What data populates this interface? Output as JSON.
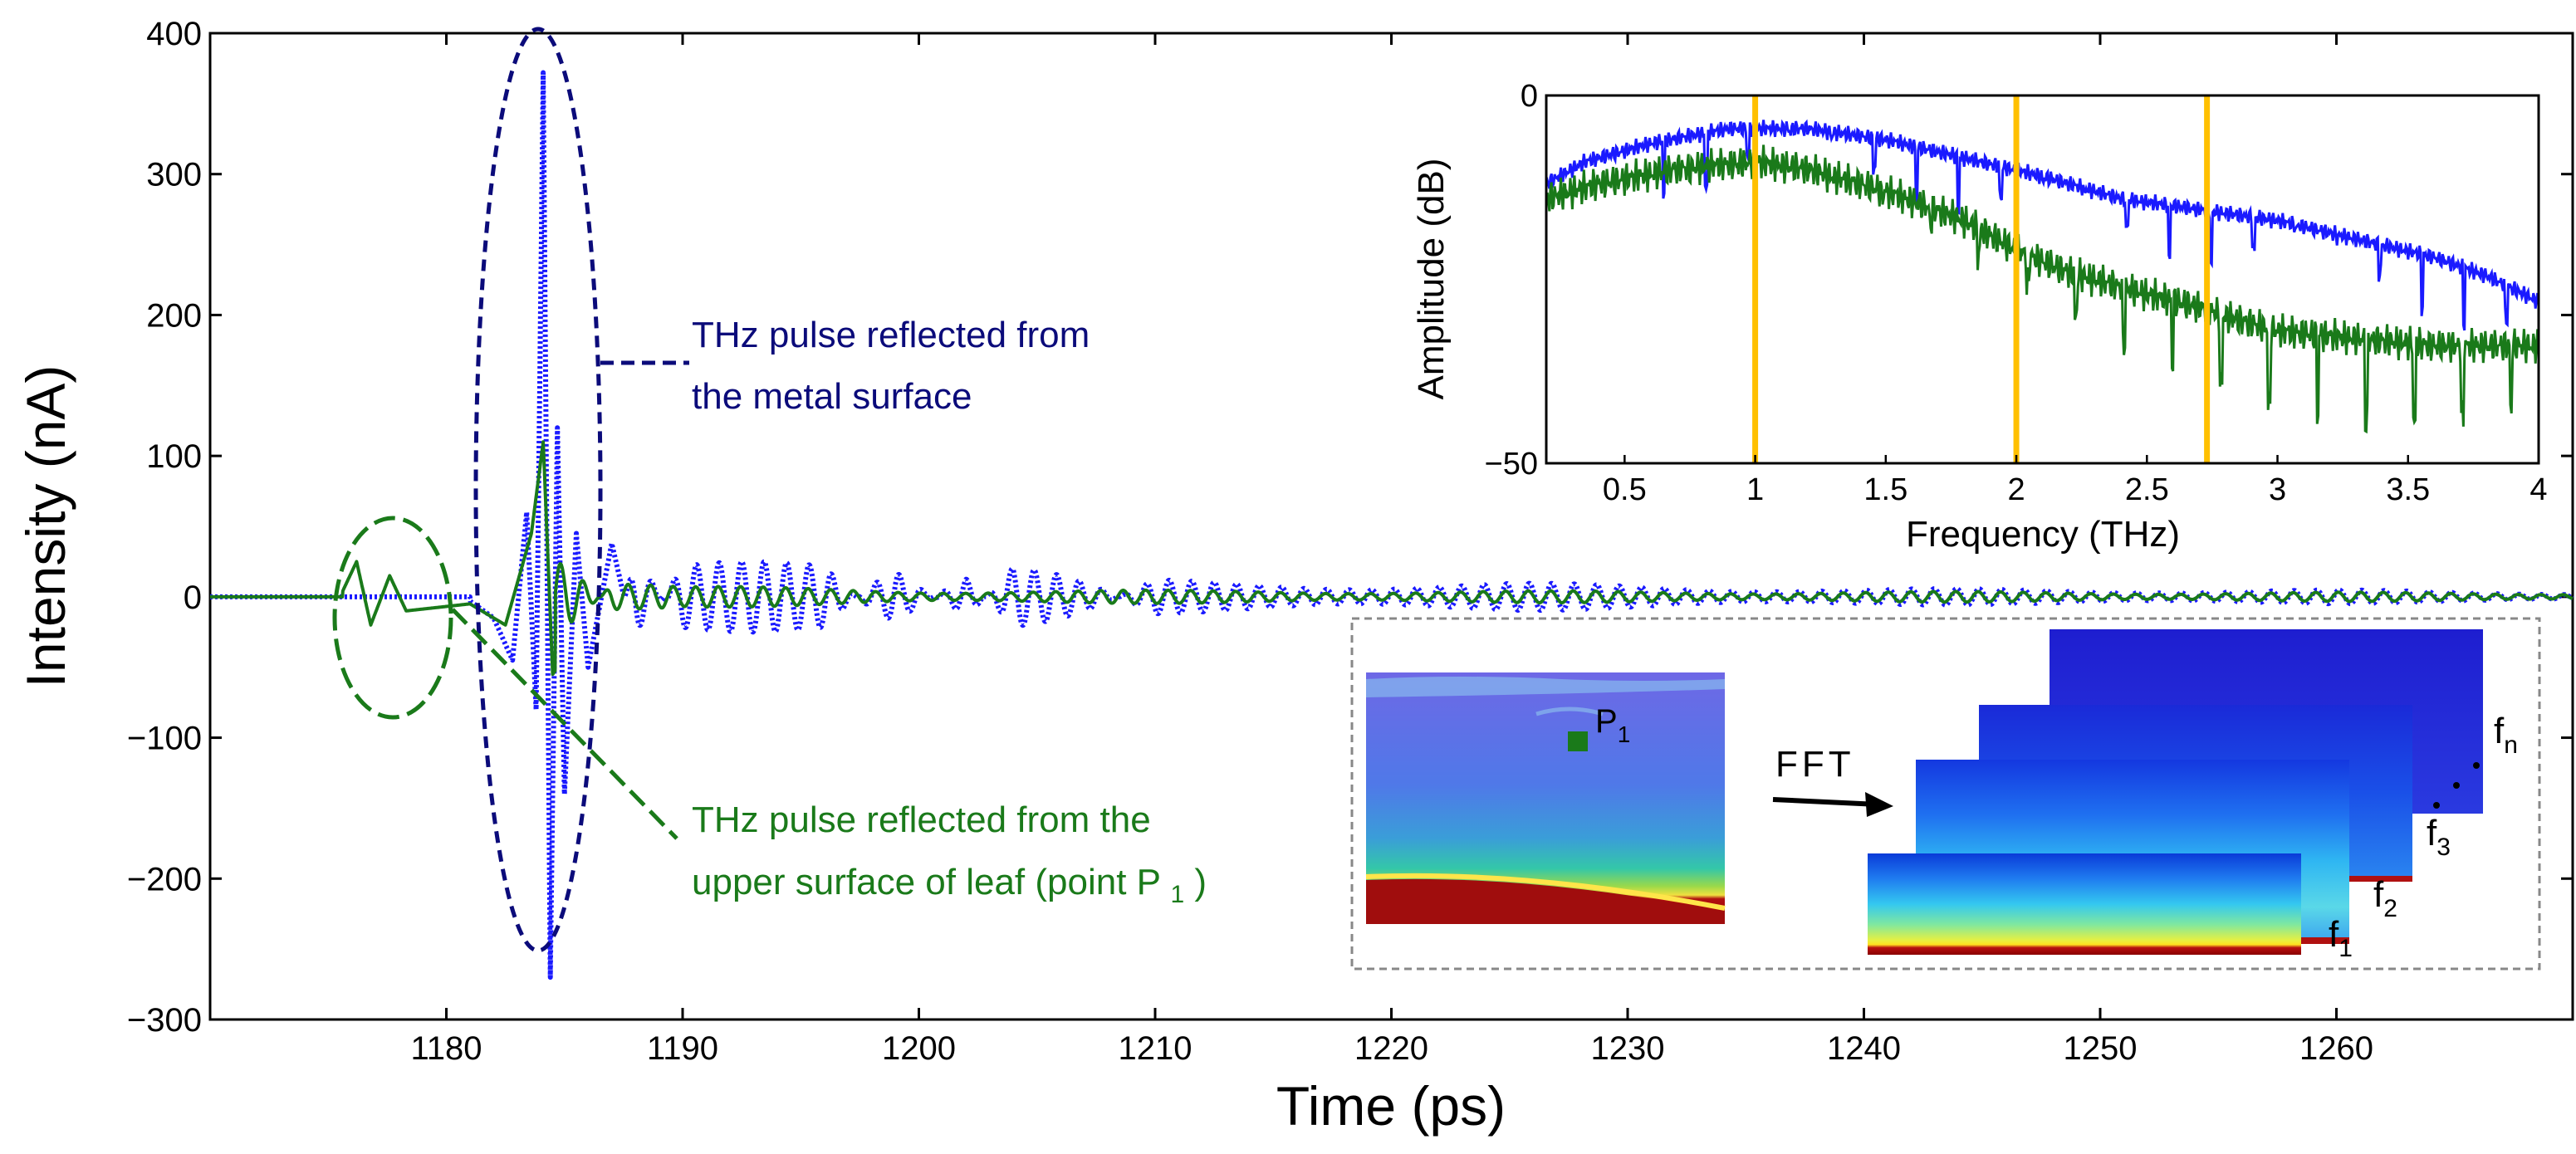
{
  "chart_data": [
    {
      "type": "line",
      "xlabel": "Time (ps)",
      "ylabel": "Intensity (nA)",
      "xlim": [
        1170,
        1270
      ],
      "ylim": [
        -300,
        400
      ],
      "xticks": [
        1180,
        1190,
        1200,
        1210,
        1220,
        1230,
        1240,
        1250,
        1260
      ],
      "yticks": [
        -300,
        -200,
        -100,
        0,
        100,
        200,
        300,
        400
      ],
      "ytick_labels": [
        "−300",
        "−200",
        "−100",
        "0",
        "100",
        "200",
        "300",
        "400"
      ],
      "grid": false,
      "series": [
        {
          "color": "#1a1aff",
          "line_style": "dotted",
          "points": [
            [
              1170,
              0
            ],
            [
              1175,
              0
            ],
            [
              1181,
              -3
            ],
            [
              1182,
              -15
            ],
            [
              1182.8,
              -45
            ],
            [
              1183.4,
              60
            ],
            [
              1183.8,
              -80
            ],
            [
              1184.1,
              372
            ],
            [
              1184.4,
              -270
            ],
            [
              1184.7,
              120
            ],
            [
              1185.0,
              -140
            ],
            [
              1185.5,
              45
            ],
            [
              1186,
              -50
            ],
            [
              1187,
              38
            ],
            [
              1188,
              -35
            ],
            [
              1190,
              25
            ],
            [
              1196,
              25
            ],
            [
              1199,
              -30
            ],
            [
              1202,
              25
            ],
            [
              1204,
              -35
            ],
            [
              1210,
              12
            ],
            [
              1218,
              10
            ],
            [
              1225,
              10
            ],
            [
              1240,
              6
            ],
            [
              1260,
              5
            ],
            [
              1270,
              3
            ]
          ]
        },
        {
          "color": "#1a7a1a",
          "line_style": "solid",
          "points": [
            [
              1170,
              0
            ],
            [
              1175.5,
              0
            ],
            [
              1176.2,
              25
            ],
            [
              1176.8,
              -20
            ],
            [
              1177.6,
              15
            ],
            [
              1178.3,
              -10
            ],
            [
              1181,
              -5
            ],
            [
              1182.5,
              -20
            ],
            [
              1183.6,
              45
            ],
            [
              1184.1,
              110
            ],
            [
              1184.5,
              -55
            ],
            [
              1185.5,
              -30
            ],
            [
              1187,
              15
            ],
            [
              1190,
              8
            ],
            [
              1200,
              5
            ],
            [
              1270,
              3
            ]
          ]
        }
      ],
      "annotations": [
        {
          "id": "metal",
          "color": "#0b0b7a",
          "lines": [
            "THz pulse reflected from",
            "the metal surface"
          ]
        },
        {
          "id": "leaf",
          "color": "#1a7a1a",
          "lines": [
            "THz pulse reflected from the",
            "upper surface of leaf (point P",
            ")"
          ],
          "subscript": "1"
        }
      ]
    },
    {
      "type": "line",
      "xlabel": "Frequency (THz)",
      "ylabel": "Amplitude (dB)",
      "xlim": [
        0.2,
        4
      ],
      "ylim": [
        -50,
        0
      ],
      "xticks": [
        0.5,
        1,
        1.5,
        2,
        2.5,
        3,
        3.5,
        4
      ],
      "xtick_labels": [
        "0.5",
        "1",
        "1.5",
        "2",
        "2.5",
        "3",
        "3.5",
        "4"
      ],
      "yticks": [
        -50,
        0
      ],
      "ytick_labels": [
        "−50",
        "0"
      ],
      "vertical_markers": [
        1.0,
        2.0,
        2.73
      ],
      "marker_color": "#ffc000",
      "series": [
        {
          "color": "#1a1aff",
          "points": [
            [
              0.2,
              -12
            ],
            [
              0.35,
              -9
            ],
            [
              0.6,
              -6.5
            ],
            [
              0.9,
              -4.5
            ],
            [
              1.2,
              -4.5
            ],
            [
              1.5,
              -6
            ],
            [
              1.8,
              -8.5
            ],
            [
              2.1,
              -11
            ],
            [
              2.4,
              -14
            ],
            [
              2.7,
              -15.5
            ],
            [
              3.0,
              -17
            ],
            [
              3.3,
              -19.5
            ],
            [
              3.6,
              -22
            ],
            [
              3.8,
              -24.5
            ],
            [
              4.0,
              -28
            ]
          ]
        },
        {
          "color": "#1a7a1a",
          "points": [
            [
              0.2,
              -14
            ],
            [
              0.4,
              -12
            ],
            [
              0.7,
              -10
            ],
            [
              1.0,
              -9
            ],
            [
              1.2,
              -10
            ],
            [
              1.5,
              -13
            ],
            [
              1.8,
              -17
            ],
            [
              2.0,
              -21
            ],
            [
              2.2,
              -24
            ],
            [
              2.5,
              -27
            ],
            [
              2.73,
              -29
            ],
            [
              2.8,
              -30
            ],
            [
              3.0,
              -32
            ],
            [
              3.3,
              -33
            ],
            [
              3.6,
              -34
            ],
            [
              3.8,
              -34
            ],
            [
              4.0,
              -34
            ]
          ]
        }
      ]
    }
  ],
  "flow": {
    "point_label": "P",
    "point_sub": "1",
    "arrow_label": "FFT",
    "freq_labels": [
      {
        "base": "f",
        "sub": "1"
      },
      {
        "base": "f",
        "sub": "2"
      },
      {
        "base": "f",
        "sub": "3"
      },
      {
        "base": "f",
        "sub": "n"
      }
    ]
  }
}
